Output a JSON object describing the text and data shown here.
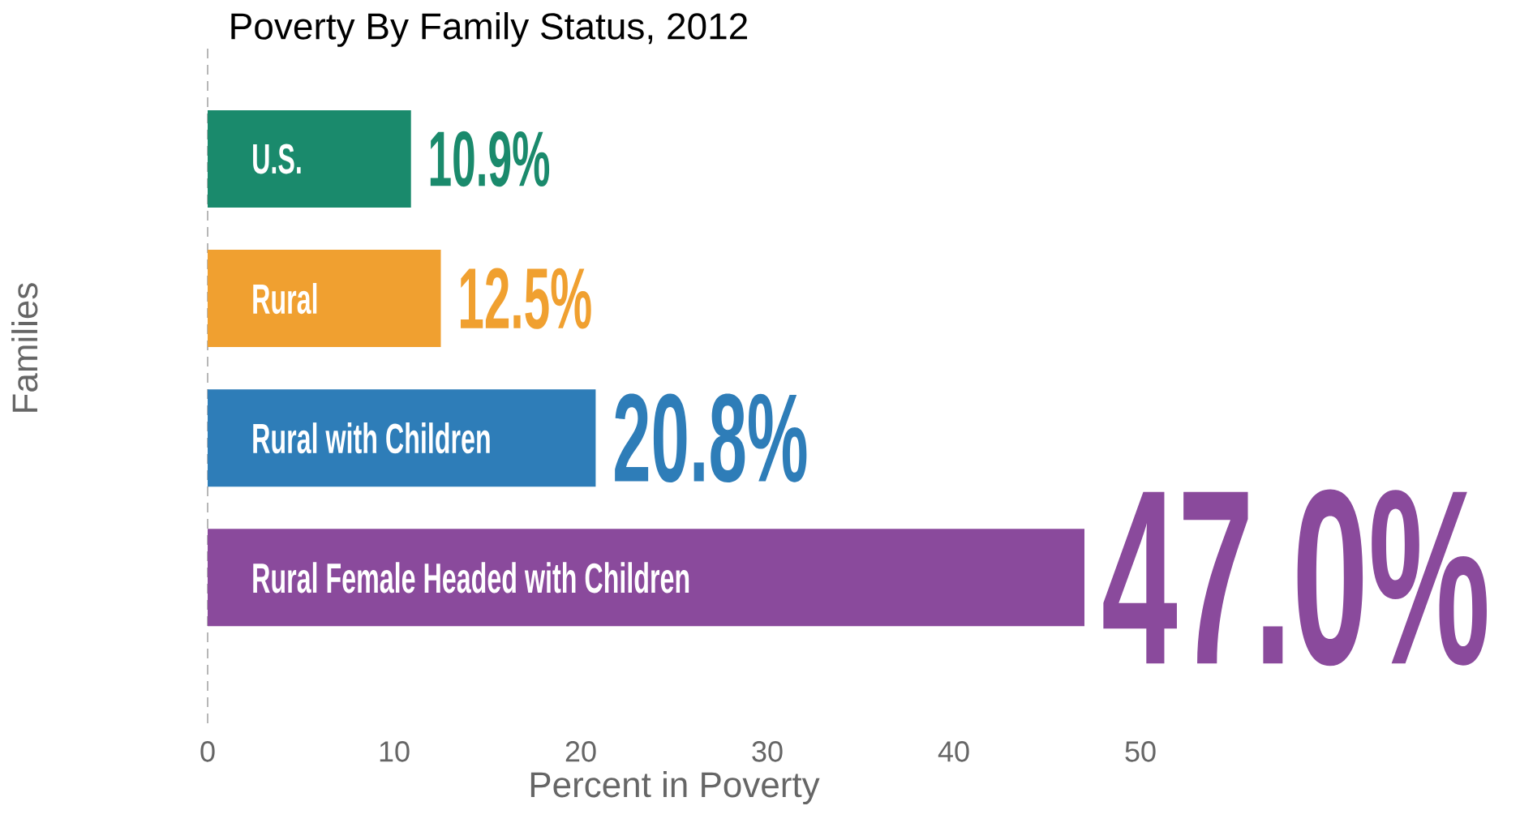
{
  "chart_data": {
    "type": "bar",
    "orientation": "horizontal",
    "title": "Poverty By Family Status, 2012",
    "xlabel": "Percent in Poverty",
    "ylabel": "Families",
    "categories": [
      "U.S.",
      "Rural",
      "Rural with Children",
      "Rural Female Headed with Children"
    ],
    "values": [
      10.9,
      12.5,
      20.8,
      47.0
    ],
    "colors": [
      "#1a8a6c",
      "#f0a030",
      "#2e7db8",
      "#8a4a9c"
    ],
    "value_labels": [
      "10.9%",
      "12.5%",
      "20.8%",
      "47.0%"
    ],
    "xlim": [
      0,
      50
    ],
    "xticks": [
      0,
      10,
      20,
      30,
      40,
      50
    ],
    "grid": false
  }
}
